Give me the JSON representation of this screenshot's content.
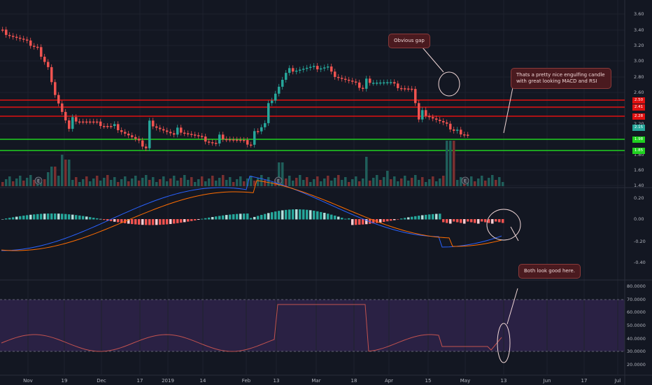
{
  "price_axis": {
    "ticks": [
      "3.60",
      "3.40",
      "3.20",
      "3.00",
      "2.80",
      "2.60",
      "2.40",
      "2.20",
      "2.00",
      "1.80",
      "1.60",
      "1.40"
    ]
  },
  "macd_axis": {
    "ticks": [
      "0.20",
      "0.00",
      "-0.20",
      "-0.40"
    ]
  },
  "rsi_axis": {
    "ticks": [
      "80.0000",
      "70.0000",
      "60.0000",
      "50.0000",
      "40.0000",
      "30.0000",
      "20.0000"
    ]
  },
  "date_axis": {
    "labels": [
      "Nov",
      "19",
      "Dec",
      "17",
      "2019",
      "14",
      "Feb",
      "13",
      "Mar",
      "18",
      "Apr",
      "15",
      "May",
      "13",
      "Jun",
      "17",
      "Jul"
    ]
  },
  "level_tags": [
    {
      "label": "2.50",
      "color": "#e01010"
    },
    {
      "label": "2.41",
      "color": "#e01010"
    },
    {
      "label": "2.28",
      "color": "#e01010"
    },
    {
      "label": "2.15",
      "color": "#26a69a"
    },
    {
      "label": "1.98",
      "color": "#1fd11f"
    },
    {
      "label": "1.85",
      "color": "#1fd11f"
    }
  ],
  "earnings_markers": [
    "E",
    "E",
    "E"
  ],
  "annotations": {
    "gap": "Obvious gap",
    "engulfing": "Thats a pretty nice engulfing candle with great looking MACD and RSI",
    "both": "Both look good here."
  },
  "colors": {
    "up": "#26a69a",
    "down": "#ef5350",
    "resistance": "#e01010",
    "support": "#1fd11f",
    "rsi_band": "#2a2144",
    "background": "#131722"
  }
}
